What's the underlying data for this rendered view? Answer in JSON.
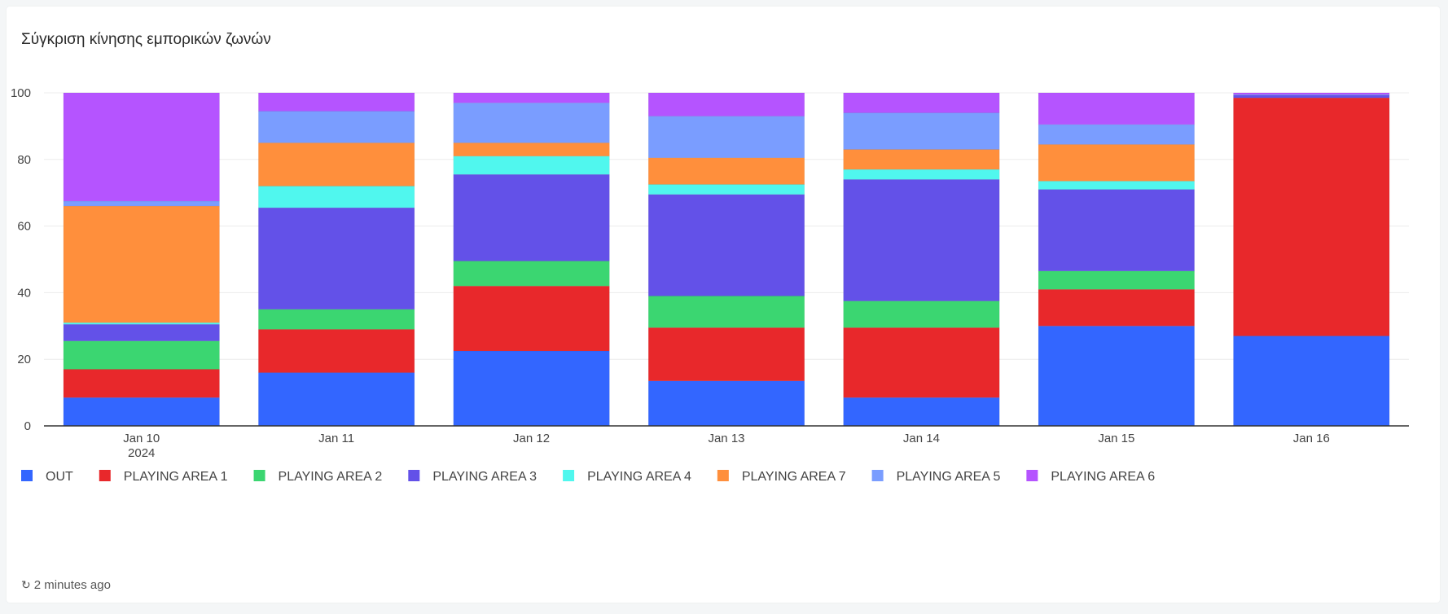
{
  "card": {
    "title": "Σύγκριση κίνησης εμπορικών ζωνών",
    "updated": "2 minutes ago",
    "refresh_icon": "refresh-icon"
  },
  "chart_data": {
    "type": "bar",
    "stacked": true,
    "categories": [
      "Jan 10",
      "Jan 11",
      "Jan 12",
      "Jan 13",
      "Jan 14",
      "Jan 15",
      "Jan 16"
    ],
    "category_sublabels": [
      "2024",
      "",
      "",
      "",
      "",
      "",
      ""
    ],
    "ylim": [
      0,
      100
    ],
    "yticks": [
      0,
      20,
      40,
      60,
      80,
      100
    ],
    "grid": true,
    "legend_position": "bottom-left",
    "series": [
      {
        "name": "OUT",
        "color": "#3366ff",
        "values": [
          8.5,
          16,
          22.5,
          13.5,
          8.5,
          30,
          27
        ]
      },
      {
        "name": "PLAYING AREA 1",
        "color": "#e8282b",
        "values": [
          8.5,
          13,
          19.5,
          16,
          21,
          11,
          71.5
        ]
      },
      {
        "name": "PLAYING AREA 2",
        "color": "#3bd671",
        "values": [
          8.5,
          6,
          7.5,
          9.5,
          8,
          5.5,
          0
        ]
      },
      {
        "name": "PLAYING AREA 3",
        "color": "#6351e8",
        "values": [
          5,
          30.5,
          26,
          30.5,
          36.5,
          24.5,
          0.8
        ]
      },
      {
        "name": "PLAYING AREA 4",
        "color": "#50f7ee",
        "values": [
          0.5,
          6.5,
          5.5,
          3,
          3,
          2.5,
          0
        ]
      },
      {
        "name": "PLAYING AREA 7",
        "color": "#ff8f3c",
        "values": [
          35,
          13,
          4,
          8,
          6,
          11,
          0
        ]
      },
      {
        "name": "PLAYING AREA 5",
        "color": "#7a9dff",
        "values": [
          1.5,
          9.5,
          12,
          12.5,
          11,
          6,
          0.2
        ]
      },
      {
        "name": "PLAYING AREA 6",
        "color": "#b554ff",
        "values": [
          32.5,
          5.5,
          3,
          7,
          6,
          9.5,
          0.5
        ]
      }
    ]
  }
}
